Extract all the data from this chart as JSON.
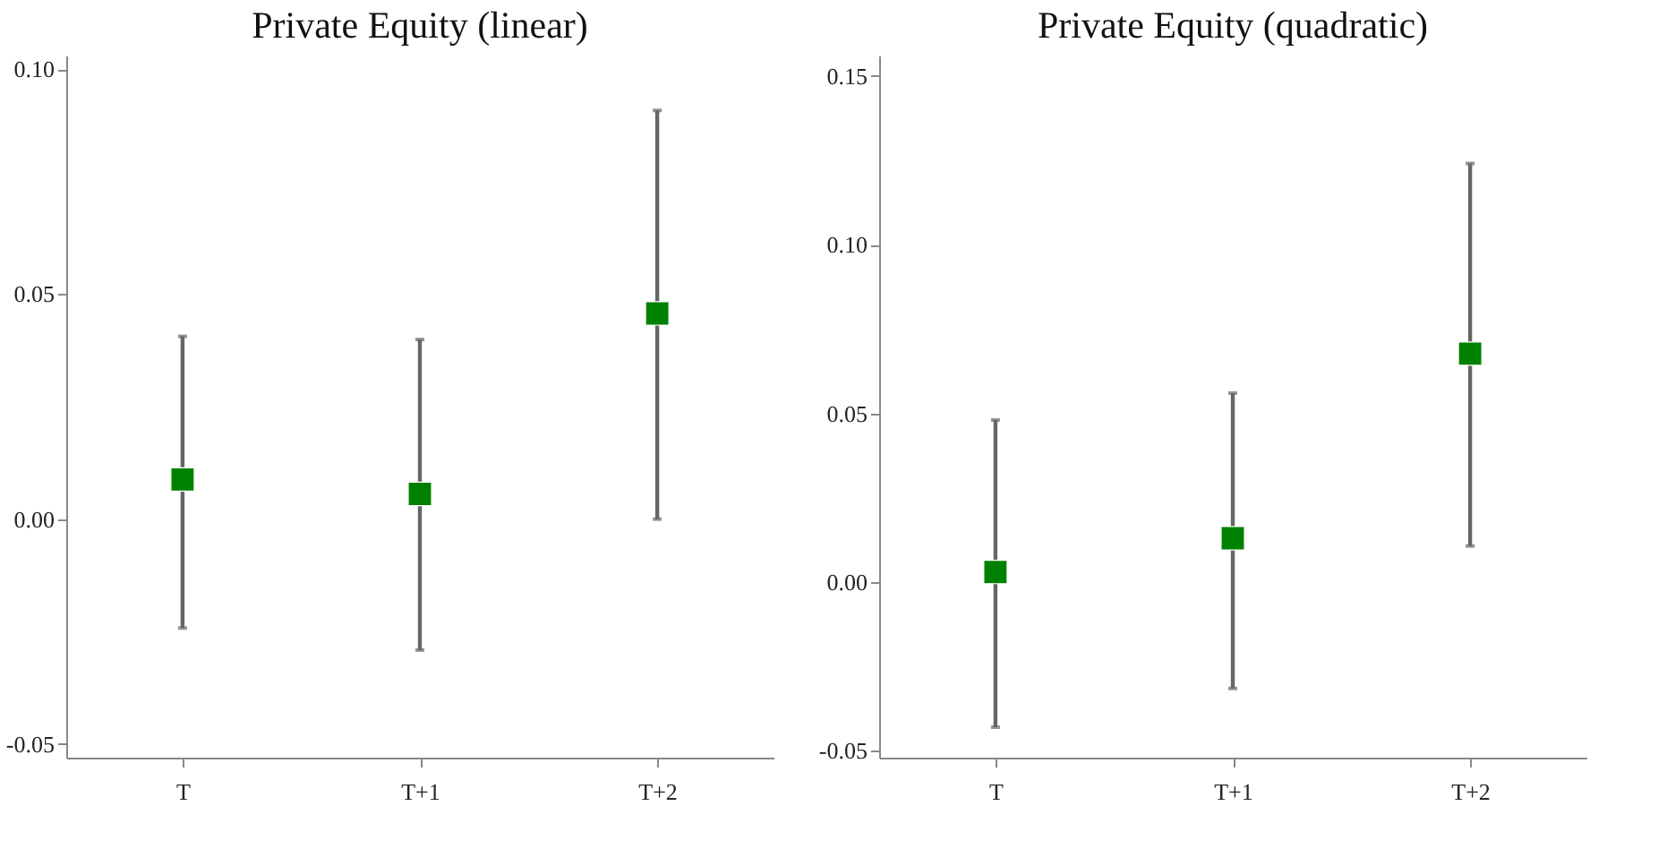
{
  "chart_data": [
    {
      "type": "scatter",
      "title": "Private Equity (linear)",
      "categories": [
        "T",
        "T+1",
        "T+2"
      ],
      "marker": "square",
      "grid": false,
      "series": [
        {
          "color": "#008000",
          "values": [
            0.0088,
            0.0056,
            0.0457
          ],
          "errors": [
            [
              -0.0242,
              0.0406
            ],
            [
              -0.0291,
              0.0399
            ],
            [
              0.0,
              0.0908
            ]
          ]
        }
      ],
      "ylim": [
        -0.053,
        0.103
      ],
      "yticks": [
        {
          "value": -0.05,
          "label": "-0.05"
        },
        {
          "value": 0,
          "label": "0.00"
        },
        {
          "value": 0.05,
          "label": "0.05"
        },
        {
          "value": 0.1,
          "label": "0.10"
        }
      ]
    },
    {
      "type": "scatter",
      "title": "Private Equity (quadratic)",
      "categories": [
        "T",
        "T+1",
        "T+2"
      ],
      "marker": "square",
      "grid": false,
      "series": [
        {
          "color": "#008000",
          "values": [
            0.003,
            0.013,
            0.0677
          ],
          "errors": [
            [
              -0.043,
              0.048
            ],
            [
              -0.0315,
              0.056
            ],
            [
              0.0107,
              0.124
            ]
          ]
        }
      ],
      "ylim": [
        -0.052,
        0.156
      ],
      "yticks": [
        {
          "value": -0.05,
          "label": "-0.05"
        },
        {
          "value": 0,
          "label": "0.00"
        },
        {
          "value": 0.05,
          "label": "0.05"
        },
        {
          "value": 0.1,
          "label": "0.10"
        },
        {
          "value": 0.15,
          "label": "0.15"
        }
      ]
    }
  ]
}
